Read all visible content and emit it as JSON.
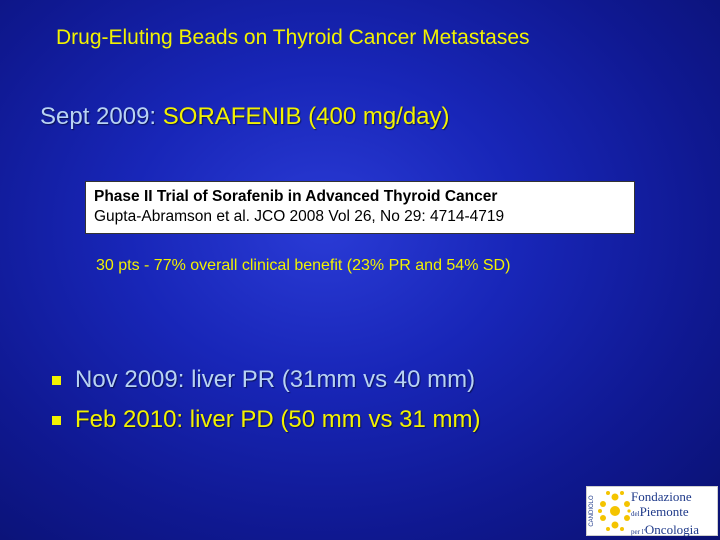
{
  "slide": {
    "title": "Drug-Eluting Beads on Thyroid Cancer Metastases",
    "subtitle_prefix": "Sept 2009: ",
    "subtitle_highlight": "SORAFENIB (400 mg/day)",
    "reference": {
      "line1": "Phase II Trial of Sorafenib in Advanced Thyroid Cancer",
      "line2": "Gupta-Abramson et al. JCO 2008 Vol 26, No 29: 4714-4719"
    },
    "note": "30 pts - 77% overall clinical benefit (23% PR and 54% SD)",
    "bullets": [
      {
        "text": "Nov 2009: liver PR (31mm vs 40 mm)"
      },
      {
        "text": "Feb 2010: liver PD (50 mm vs 31 mm)"
      }
    ],
    "logo": {
      "line1": "Fondazione",
      "line2_small": "del",
      "line2": "Piemonte",
      "line3_small": "per l'",
      "line3": "Oncologia",
      "side_text": "CANDIOLO"
    }
  },
  "colors": {
    "background": "#1826b8",
    "title": "#f2f200",
    "subtitle": "#b8d3f4",
    "accent": "#f2f200"
  }
}
